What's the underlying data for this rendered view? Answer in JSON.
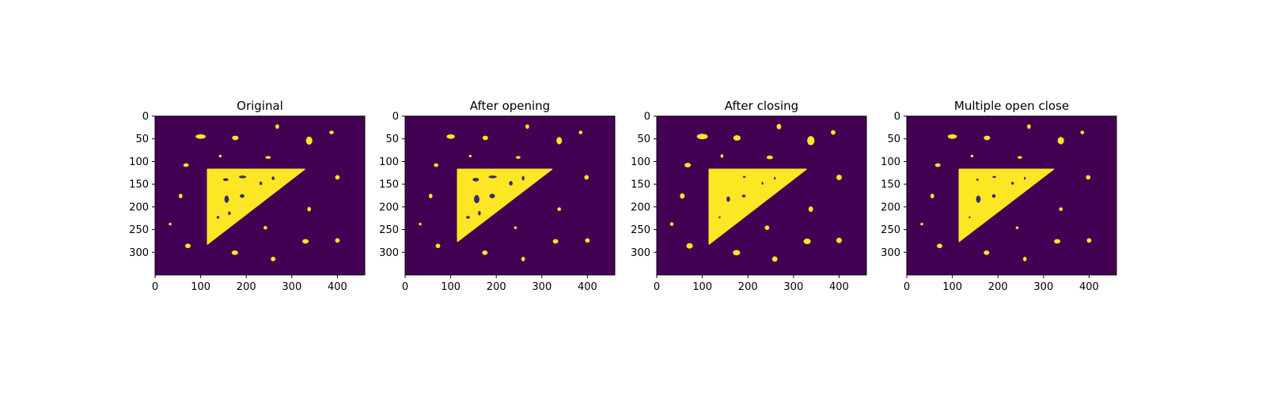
{
  "colors": {
    "background": "#440154",
    "foreground": "#fde725",
    "hole": "#3b2a6e",
    "axis": "#000000"
  },
  "chart_data": [
    {
      "type": "heatmap",
      "title": "Original",
      "xlim": [
        0,
        460
      ],
      "ylim": [
        350,
        0
      ],
      "xticks": [
        0,
        100,
        200,
        300,
        400
      ],
      "yticks": [
        0,
        50,
        100,
        150,
        200,
        250,
        300
      ],
      "triangle": [
        [
          115,
          117
        ],
        [
          328,
          117
        ],
        [
          115,
          282
        ]
      ],
      "blobs": [
        [
          100,
          45,
          11,
          5
        ],
        [
          176,
          48,
          7,
          5
        ],
        [
          268,
          23,
          4,
          5
        ],
        [
          338,
          54,
          7,
          9
        ],
        [
          387,
          36,
          5,
          4
        ],
        [
          143,
          88,
          3,
          3
        ],
        [
          248,
          91,
          6,
          3
        ],
        [
          68,
          108,
          6,
          4
        ],
        [
          400,
          135,
          5,
          5
        ],
        [
          56,
          176,
          4,
          5
        ],
        [
          338,
          205,
          4,
          5
        ],
        [
          33,
          238,
          3,
          3
        ],
        [
          242,
          246,
          4,
          4
        ],
        [
          72,
          286,
          6,
          5
        ],
        [
          175,
          301,
          7,
          5
        ],
        [
          259,
          315,
          5,
          5
        ],
        [
          330,
          276,
          7,
          5
        ],
        [
          400,
          274,
          5,
          5
        ]
      ],
      "holes": [
        [
          155,
          140,
          6,
          3
        ],
        [
          192,
          134,
          8,
          3
        ],
        [
          232,
          148,
          3,
          4
        ],
        [
          259,
          137,
          3,
          4
        ],
        [
          157,
          183,
          5,
          8
        ],
        [
          191,
          176,
          5,
          4
        ],
        [
          138,
          223,
          3,
          3
        ],
        [
          163,
          214,
          3,
          4
        ]
      ]
    },
    {
      "type": "heatmap",
      "title": "After opening",
      "xlim": [
        0,
        460
      ],
      "ylim": [
        350,
        0
      ],
      "xticks": [
        0,
        100,
        200,
        300,
        400
      ],
      "yticks": [
        0,
        50,
        100,
        150,
        200,
        250,
        300
      ],
      "triangle": [
        [
          115,
          117
        ],
        [
          322,
          117
        ],
        [
          115,
          276
        ]
      ],
      "blobs": [
        [
          100,
          45,
          9,
          5
        ],
        [
          176,
          48,
          6,
          5
        ],
        [
          268,
          23,
          4,
          5
        ],
        [
          338,
          54,
          6,
          8
        ],
        [
          385,
          36,
          4,
          4
        ],
        [
          143,
          88,
          3,
          3
        ],
        [
          248,
          91,
          5,
          3
        ],
        [
          68,
          108,
          5,
          4
        ],
        [
          398,
          135,
          5,
          5
        ],
        [
          56,
          176,
          4,
          5
        ],
        [
          338,
          205,
          4,
          4
        ],
        [
          33,
          238,
          3,
          3
        ],
        [
          242,
          246,
          3,
          3
        ],
        [
          72,
          286,
          5,
          5
        ],
        [
          175,
          301,
          6,
          5
        ],
        [
          259,
          315,
          4,
          5
        ],
        [
          330,
          276,
          6,
          5
        ],
        [
          400,
          274,
          5,
          5
        ]
      ],
      "holes": [
        [
          155,
          140,
          7,
          4
        ],
        [
          192,
          134,
          9,
          3
        ],
        [
          232,
          148,
          4,
          5
        ],
        [
          259,
          137,
          3,
          5
        ],
        [
          157,
          183,
          6,
          9
        ],
        [
          191,
          176,
          6,
          5
        ],
        [
          138,
          223,
          4,
          3
        ],
        [
          163,
          214,
          3,
          5
        ]
      ]
    },
    {
      "type": "heatmap",
      "title": "After closing",
      "xlim": [
        0,
        460
      ],
      "ylim": [
        350,
        0
      ],
      "xticks": [
        0,
        100,
        200,
        300,
        400
      ],
      "yticks": [
        0,
        50,
        100,
        150,
        200,
        250,
        300
      ],
      "triangle": [
        [
          115,
          117
        ],
        [
          328,
          117
        ],
        [
          115,
          282
        ]
      ],
      "blobs": [
        [
          100,
          45,
          12,
          6
        ],
        [
          176,
          48,
          8,
          6
        ],
        [
          268,
          23,
          5,
          6
        ],
        [
          338,
          54,
          8,
          10
        ],
        [
          387,
          36,
          5,
          5
        ],
        [
          143,
          88,
          3,
          4
        ],
        [
          248,
          91,
          7,
          4
        ],
        [
          68,
          108,
          7,
          5
        ],
        [
          400,
          135,
          6,
          6
        ],
        [
          56,
          176,
          5,
          6
        ],
        [
          338,
          205,
          5,
          6
        ],
        [
          33,
          238,
          4,
          4
        ],
        [
          242,
          246,
          5,
          5
        ],
        [
          72,
          286,
          7,
          6
        ],
        [
          175,
          301,
          8,
          6
        ],
        [
          259,
          315,
          6,
          6
        ],
        [
          330,
          276,
          8,
          6
        ],
        [
          400,
          274,
          6,
          6
        ]
      ],
      "holes": [
        [
          192,
          134,
          3,
          2
        ],
        [
          232,
          148,
          2,
          3
        ],
        [
          259,
          137,
          2,
          3
        ],
        [
          157,
          183,
          4,
          6
        ],
        [
          191,
          176,
          4,
          3
        ],
        [
          138,
          223,
          2,
          2
        ]
      ]
    },
    {
      "type": "heatmap",
      "title": "Multiple open close",
      "xlim": [
        0,
        460
      ],
      "ylim": [
        350,
        0
      ],
      "xticks": [
        0,
        100,
        200,
        300,
        400
      ],
      "yticks": [
        0,
        50,
        100,
        150,
        200,
        250,
        300
      ],
      "triangle": [
        [
          115,
          117
        ],
        [
          322,
          117
        ],
        [
          115,
          276
        ]
      ],
      "blobs": [
        [
          100,
          45,
          10,
          5
        ],
        [
          176,
          48,
          7,
          5
        ],
        [
          268,
          23,
          4,
          5
        ],
        [
          338,
          54,
          7,
          8
        ],
        [
          385,
          36,
          4,
          4
        ],
        [
          143,
          88,
          3,
          3
        ],
        [
          248,
          91,
          5,
          3
        ],
        [
          68,
          108,
          6,
          4
        ],
        [
          398,
          135,
          5,
          5
        ],
        [
          56,
          176,
          4,
          5
        ],
        [
          338,
          205,
          4,
          4
        ],
        [
          33,
          238,
          3,
          3
        ],
        [
          242,
          246,
          3,
          3
        ],
        [
          72,
          286,
          6,
          5
        ],
        [
          175,
          301,
          6,
          5
        ],
        [
          259,
          315,
          4,
          5
        ],
        [
          330,
          276,
          7,
          5
        ],
        [
          400,
          274,
          5,
          5
        ]
      ],
      "holes": [
        [
          155,
          140,
          3,
          2
        ],
        [
          192,
          134,
          4,
          2
        ],
        [
          232,
          148,
          3,
          3
        ],
        [
          259,
          137,
          2,
          3
        ],
        [
          157,
          183,
          5,
          8
        ],
        [
          191,
          176,
          4,
          4
        ],
        [
          138,
          223,
          2,
          2
        ]
      ]
    }
  ]
}
